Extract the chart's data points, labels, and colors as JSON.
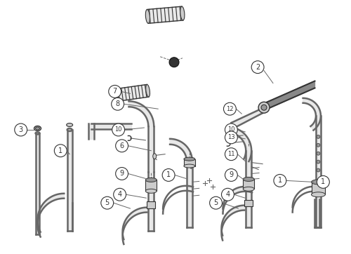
{
  "bg_color": "#ffffff",
  "line_color": "#666666",
  "dark_color": "#333333",
  "fill_light": "#e8e8e8",
  "fill_mid": "#cccccc",
  "fill_dark": "#999999",
  "fig_width": 5.0,
  "fig_height": 3.62,
  "dpi": 100
}
